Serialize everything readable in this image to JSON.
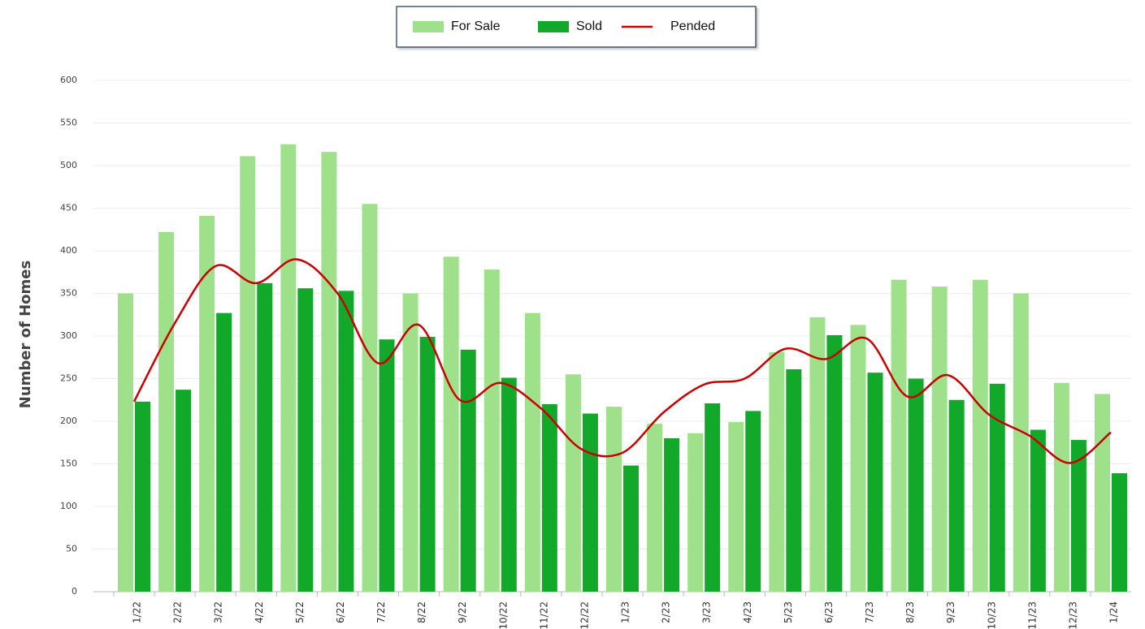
{
  "chart_data": {
    "type": "bar-line",
    "y_label": "Number of Homes",
    "categories": [
      "1/22",
      "2/22",
      "3/22",
      "4/22",
      "5/22",
      "6/22",
      "7/22",
      "8/22",
      "9/22",
      "10/22",
      "11/22",
      "12/22",
      "1/23",
      "2/23",
      "3/23",
      "4/23",
      "5/23",
      "6/23",
      "7/23",
      "8/23",
      "9/23",
      "10/23",
      "11/23",
      "12/23",
      "1/24"
    ],
    "series": [
      {
        "name": "For Sale",
        "type": "bar",
        "color": "#9fe08a",
        "values": [
          350,
          422,
          441,
          511,
          525,
          516,
          455,
          350,
          393,
          378,
          327,
          255,
          217,
          197,
          186,
          199,
          281,
          322,
          313,
          366,
          358,
          366,
          350,
          245,
          232
        ]
      },
      {
        "name": "Sold",
        "type": "bar",
        "color": "#12a82a",
        "values": [
          223,
          237,
          327,
          362,
          356,
          353,
          296,
          299,
          284,
          251,
          220,
          209,
          148,
          180,
          221,
          212,
          261,
          301,
          257,
          250,
          225,
          244,
          190,
          178,
          139
        ]
      },
      {
        "name": "Pended",
        "type": "line",
        "color": "#cc0000",
        "values": [
          223,
          315,
          382,
          362,
          390,
          350,
          268,
          313,
          225,
          245,
          215,
          167,
          163,
          210,
          243,
          250,
          285,
          273,
          297,
          229,
          254,
          208,
          183,
          151,
          187
        ]
      }
    ],
    "ylim": [
      0,
      600
    ],
    "yticks": [
      0,
      50,
      100,
      150,
      200,
      250,
      300,
      350,
      400,
      450,
      500,
      550,
      600
    ],
    "grid": true
  }
}
